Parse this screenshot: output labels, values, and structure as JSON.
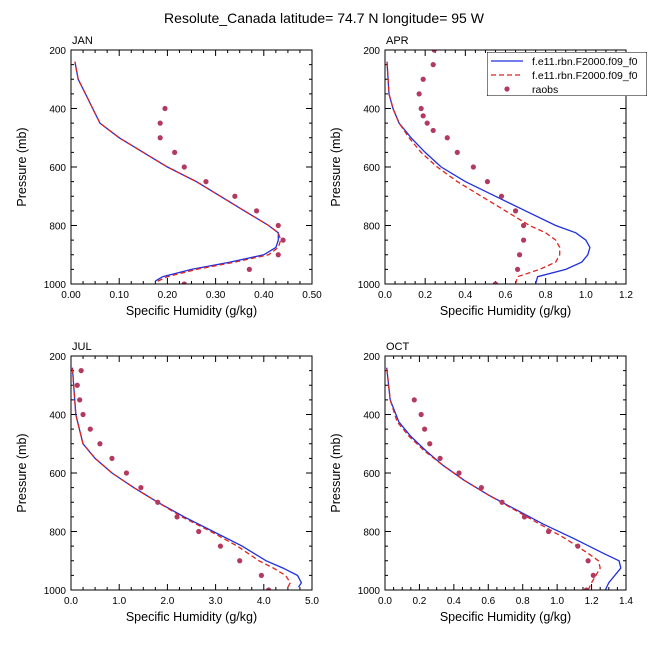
{
  "figure": {
    "title": "Resolute_Canada  latitude= 74.7 N longitude= 95 W"
  },
  "colors": {
    "series1": "#1f2fe0",
    "series2": "#e0231e",
    "raobs": "#b33a5e"
  },
  "chart_data": [
    {
      "type": "line",
      "title": "JAN",
      "xlabel": "Specific Humidity (g/kg)",
      "ylabel": "Pressure (mb)",
      "xlim": [
        0,
        0.5
      ],
      "ylim": [
        1000,
        200
      ],
      "y_reversed": true,
      "xticks": [
        "0.00",
        "0.10",
        "0.20",
        "0.30",
        "0.40",
        "0.50"
      ],
      "yticks": [
        "200",
        "400",
        "600",
        "800",
        "1000"
      ],
      "series": [
        {
          "name": "f.e11.rbn.F2000.f09_f0",
          "style": "solid",
          "x": [
            0.175,
            0.19,
            0.25,
            0.33,
            0.4,
            0.425,
            0.43,
            0.43,
            0.41,
            0.36,
            0.26,
            0.2,
            0.15,
            0.1,
            0.06,
            0.03,
            0.015,
            0.008
          ],
          "y": [
            990,
            975,
            950,
            925,
            900,
            875,
            850,
            825,
            800,
            750,
            650,
            600,
            550,
            500,
            450,
            350,
            300,
            240
          ]
        },
        {
          "name": "f.e11.rbn.F2000.f09_f0",
          "style": "dashed",
          "x": [
            0.18,
            0.2,
            0.26,
            0.34,
            0.41,
            0.43,
            0.435,
            0.43,
            0.41,
            0.36,
            0.26,
            0.2,
            0.15,
            0.1,
            0.06,
            0.03,
            0.015,
            0.008
          ],
          "y": [
            990,
            975,
            950,
            925,
            900,
            875,
            850,
            825,
            800,
            750,
            650,
            600,
            550,
            500,
            450,
            350,
            300,
            240
          ]
        },
        {
          "name": "raobs",
          "style": "markers",
          "x": [
            0.235,
            0.37,
            0.43,
            0.44,
            0.43,
            0.385,
            0.34,
            0.28,
            0.235,
            0.215,
            0.185,
            0.185,
            0.195
          ],
          "y": [
            1000,
            950,
            900,
            850,
            800,
            750,
            700,
            650,
            600,
            550,
            500,
            450,
            400
          ]
        }
      ]
    },
    {
      "type": "line",
      "title": "APR",
      "xlabel": "Specific Humidity (g/kg)",
      "ylabel": "Pressure (mb)",
      "xlim": [
        0,
        1.2
      ],
      "ylim": [
        1000,
        200
      ],
      "y_reversed": true,
      "xticks": [
        "0.0",
        "0.2",
        "0.4",
        "0.6",
        "0.8",
        "1.0",
        "1.2"
      ],
      "yticks": [
        "200",
        "400",
        "600",
        "800",
        "1000"
      ],
      "series": [
        {
          "name": "f.e11.rbn.F2000.f09_f0",
          "style": "solid",
          "x": [
            0.75,
            0.76,
            0.9,
            0.98,
            1.01,
            1.02,
            1.0,
            0.95,
            0.85,
            0.7,
            0.55,
            0.4,
            0.28,
            0.2,
            0.13,
            0.07,
            0.04,
            0.02,
            0.01
          ],
          "y": [
            1000,
            975,
            950,
            925,
            900,
            875,
            850,
            825,
            800,
            750,
            700,
            650,
            600,
            550,
            500,
            450,
            400,
            350,
            240
          ]
        },
        {
          "name": "f.e11.rbn.F2000.f09_f0",
          "style": "dashed",
          "x": [
            0.65,
            0.66,
            0.77,
            0.85,
            0.87,
            0.87,
            0.85,
            0.8,
            0.72,
            0.6,
            0.48,
            0.36,
            0.26,
            0.18,
            0.12,
            0.07,
            0.04,
            0.02,
            0.01
          ],
          "y": [
            1000,
            975,
            950,
            925,
            900,
            875,
            850,
            825,
            800,
            750,
            700,
            650,
            600,
            550,
            500,
            450,
            400,
            350,
            240
          ]
        },
        {
          "name": "raobs",
          "style": "markers",
          "x": [
            0.55,
            0.66,
            0.67,
            0.69,
            0.69,
            0.65,
            0.58,
            0.51,
            0.44,
            0.36,
            0.31,
            0.24,
            0.21,
            0.19,
            0.18,
            0.17,
            0.19,
            0.24,
            0.245
          ],
          "y": [
            1000,
            950,
            900,
            850,
            800,
            750,
            700,
            650,
            600,
            550,
            500,
            475,
            450,
            425,
            400,
            350,
            300,
            250,
            200
          ]
        }
      ]
    },
    {
      "type": "line",
      "title": "JUL",
      "xlabel": "Specific Humidity (g/kg)",
      "ylabel": "Pressure (mb)",
      "xlim": [
        0,
        5.0
      ],
      "ylim": [
        1000,
        200
      ],
      "y_reversed": true,
      "xticks": [
        "0.0",
        "1.0",
        "2.0",
        "3.0",
        "4.0",
        "5.0"
      ],
      "yticks": [
        "200",
        "400",
        "600",
        "800",
        "1000"
      ],
      "series": [
        {
          "name": "f.e11.rbn.F2000.f09_f0",
          "style": "solid",
          "x": [
            4.72,
            4.78,
            4.7,
            4.4,
            4.05,
            3.55,
            2.95,
            2.35,
            1.8,
            1.3,
            0.85,
            0.5,
            0.25,
            0.1,
            0.03
          ],
          "y": [
            990,
            975,
            950,
            925,
            900,
            850,
            800,
            750,
            700,
            650,
            600,
            550,
            500,
            400,
            240
          ]
        },
        {
          "name": "f.e11.rbn.F2000.f09_f0",
          "style": "dashed",
          "x": [
            4.5,
            4.55,
            4.45,
            4.2,
            3.9,
            3.45,
            2.9,
            2.3,
            1.8,
            1.3,
            0.85,
            0.5,
            0.25,
            0.1,
            0.03
          ],
          "y": [
            990,
            975,
            950,
            925,
            900,
            850,
            800,
            750,
            700,
            650,
            600,
            550,
            500,
            400,
            240
          ]
        },
        {
          "name": "raobs",
          "style": "markers",
          "x": [
            4.1,
            3.95,
            3.5,
            3.1,
            2.65,
            2.2,
            1.8,
            1.45,
            1.15,
            0.85,
            0.6,
            0.4,
            0.25,
            0.18,
            0.13,
            0.21
          ],
          "y": [
            1000,
            950,
            900,
            850,
            800,
            750,
            700,
            650,
            600,
            550,
            500,
            450,
            400,
            350,
            300,
            250
          ]
        }
      ]
    },
    {
      "type": "line",
      "title": "OCT",
      "xlabel": "Specific Humidity (g/kg)",
      "ylabel": "Pressure (mb)",
      "xlim": [
        0,
        1.4
      ],
      "ylim": [
        1000,
        200
      ],
      "y_reversed": true,
      "xticks": [
        "0.0",
        "0.2",
        "0.4",
        "0.6",
        "0.8",
        "1.0",
        "1.2",
        "1.4"
      ],
      "yticks": [
        "200",
        "400",
        "600",
        "800",
        "1000"
      ],
      "series": [
        {
          "name": "f.e11.rbn.F2000.f09_f0",
          "style": "solid",
          "x": [
            1.28,
            1.3,
            1.37,
            1.36,
            1.27,
            1.1,
            0.92,
            0.76,
            0.6,
            0.46,
            0.34,
            0.24,
            0.15,
            0.08,
            0.03,
            0.01
          ],
          "y": [
            1000,
            975,
            925,
            900,
            875,
            825,
            775,
            725,
            675,
            625,
            575,
            525,
            475,
            425,
            350,
            240
          ]
        },
        {
          "name": "f.e11.rbn.F2000.f09_f0",
          "style": "dashed",
          "x": [
            1.18,
            1.2,
            1.25,
            1.24,
            1.18,
            1.05,
            0.9,
            0.75,
            0.6,
            0.46,
            0.34,
            0.23,
            0.14,
            0.07,
            0.03,
            0.01
          ],
          "y": [
            1000,
            975,
            925,
            900,
            875,
            825,
            775,
            725,
            675,
            625,
            575,
            525,
            475,
            425,
            350,
            240
          ]
        },
        {
          "name": "raobs",
          "style": "markers",
          "x": [
            1.17,
            1.21,
            1.18,
            1.12,
            0.95,
            0.81,
            0.68,
            0.56,
            0.43,
            0.32,
            0.26,
            0.23,
            0.21,
            0.17
          ],
          "y": [
            1000,
            950,
            900,
            850,
            800,
            750,
            700,
            650,
            600,
            550,
            500,
            450,
            400,
            350
          ]
        }
      ]
    }
  ],
  "legend": {
    "placement": "top-right of APR panel",
    "entries": [
      "f.e11.rbn.F2000.f09_f0",
      "f.e11.rbn.F2000.f09_f0",
      "raobs"
    ]
  }
}
